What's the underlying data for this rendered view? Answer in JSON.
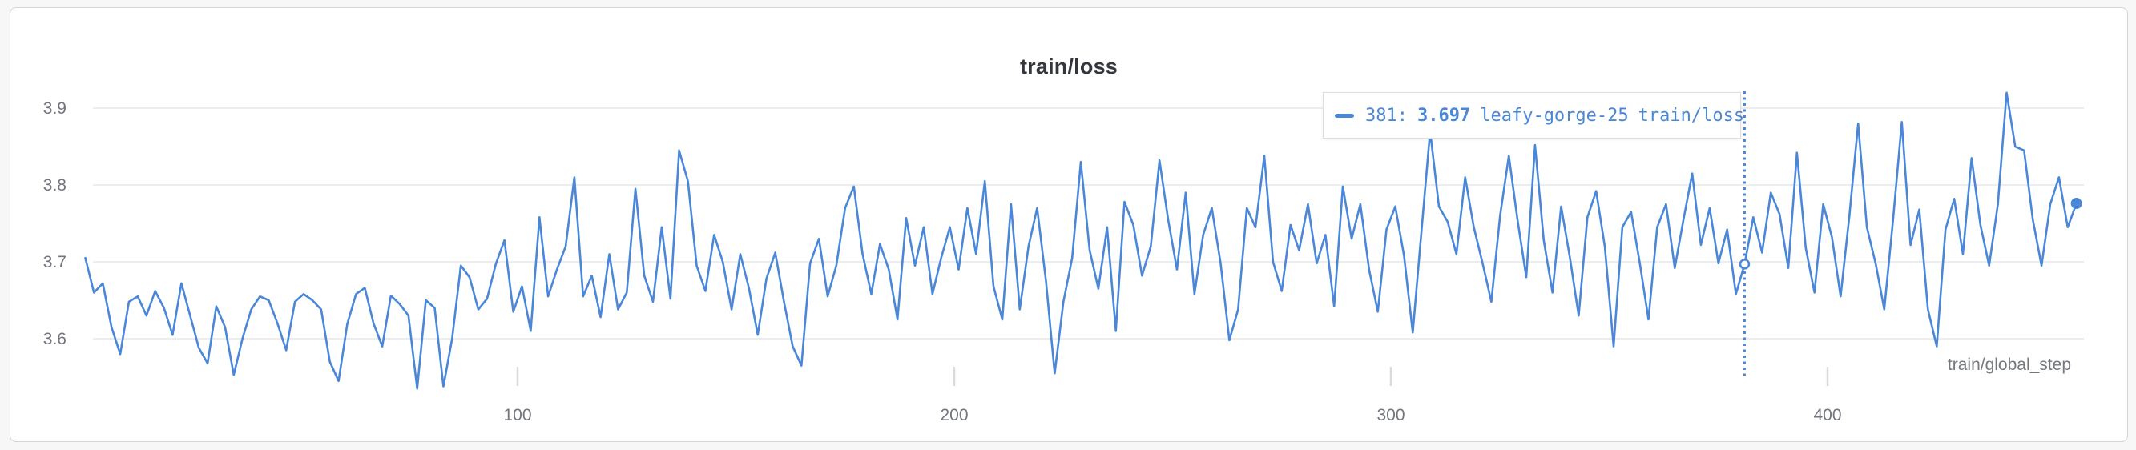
{
  "panel": {
    "title": "train/loss"
  },
  "tooltip": {
    "step": "381:",
    "value": "3.697",
    "run": "leafy-gorge-25",
    "metric": "train/loss"
  },
  "colors": {
    "series_blue": "#4a87d8",
    "gridline": "#e7e7e7",
    "tick_mark": "#dadada",
    "axis_text": "#73757d",
    "card_border": "#d4d4d4",
    "background": "#f7f7f7"
  },
  "chart_data": {
    "type": "line",
    "title": "train/loss",
    "xlabel": "train/global_step",
    "ylabel": "",
    "series_name": "leafy-gorge-25",
    "legend_position": "tooltip",
    "grid": "horizontal-only",
    "yticks": [
      3.6,
      3.7,
      3.8,
      3.9
    ],
    "xticks": [
      100,
      200,
      300,
      400
    ],
    "ylim": [
      3.54,
      3.95
    ],
    "xlim": [
      0,
      459
    ],
    "cursor": {
      "step": 381,
      "value": 3.697
    },
    "end_marker": true,
    "x_start": 1,
    "x_step": 2,
    "values": [
      3.705,
      3.66,
      3.672,
      3.615,
      3.58,
      3.648,
      3.655,
      3.63,
      3.662,
      3.64,
      3.605,
      3.672,
      3.63,
      3.588,
      3.568,
      3.642,
      3.615,
      3.553,
      3.6,
      3.638,
      3.655,
      3.65,
      3.62,
      3.585,
      3.648,
      3.658,
      3.65,
      3.638,
      3.57,
      3.545,
      3.619,
      3.658,
      3.666,
      3.62,
      3.59,
      3.656,
      3.645,
      3.63,
      3.535,
      3.65,
      3.64,
      3.538,
      3.6,
      3.695,
      3.68,
      3.638,
      3.652,
      3.697,
      3.728,
      3.635,
      3.668,
      3.61,
      3.758,
      3.655,
      3.69,
      3.72,
      3.81,
      3.655,
      3.682,
      3.628,
      3.71,
      3.638,
      3.66,
      3.795,
      3.682,
      3.648,
      3.745,
      3.652,
      3.845,
      3.805,
      3.695,
      3.662,
      3.735,
      3.7,
      3.638,
      3.71,
      3.665,
      3.605,
      3.678,
      3.712,
      3.648,
      3.59,
      3.565,
      3.698,
      3.73,
      3.655,
      3.695,
      3.77,
      3.798,
      3.71,
      3.658,
      3.723,
      3.69,
      3.625,
      3.757,
      3.695,
      3.745,
      3.658,
      3.705,
      3.745,
      3.69,
      3.77,
      3.71,
      3.805,
      3.668,
      3.625,
      3.775,
      3.638,
      3.72,
      3.77,
      3.675,
      3.555,
      3.648,
      3.705,
      3.83,
      3.715,
      3.665,
      3.745,
      3.61,
      3.778,
      3.748,
      3.682,
      3.72,
      3.832,
      3.755,
      3.69,
      3.79,
      3.658,
      3.735,
      3.77,
      3.698,
      3.598,
      3.638,
      3.77,
      3.745,
      3.838,
      3.7,
      3.662,
      3.748,
      3.715,
      3.775,
      3.698,
      3.735,
      3.642,
      3.798,
      3.73,
      3.775,
      3.69,
      3.635,
      3.742,
      3.772,
      3.708,
      3.608,
      3.74,
      3.87,
      3.772,
      3.752,
      3.71,
      3.81,
      3.745,
      3.698,
      3.648,
      3.76,
      3.838,
      3.755,
      3.68,
      3.852,
      3.728,
      3.66,
      3.772,
      3.705,
      3.63,
      3.758,
      3.792,
      3.72,
      3.59,
      3.745,
      3.765,
      3.698,
      3.625,
      3.745,
      3.775,
      3.692,
      3.755,
      3.815,
      3.722,
      3.77,
      3.698,
      3.742,
      3.658,
      3.697,
      3.758,
      3.712,
      3.79,
      3.762,
      3.692,
      3.842,
      3.718,
      3.66,
      3.775,
      3.732,
      3.655,
      3.76,
      3.88,
      3.745,
      3.698,
      3.638,
      3.755,
      3.882,
      3.722,
      3.768,
      3.638,
      3.59,
      3.742,
      3.782,
      3.71,
      3.835,
      3.748,
      3.695,
      3.775,
      3.92,
      3.85,
      3.845,
      3.755,
      3.695,
      3.775,
      3.81,
      3.745,
      3.776
    ]
  }
}
